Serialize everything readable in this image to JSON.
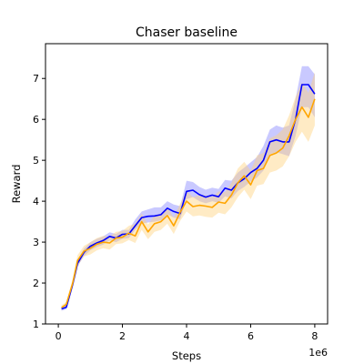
{
  "chart_data": {
    "type": "line",
    "title": "Chaser baseline",
    "xlabel": "Steps",
    "ylabel": "Reward",
    "x_offset_label": "1e6",
    "xlim": [
      -0.4,
      8.4
    ],
    "ylim": [
      1,
      7.85
    ],
    "xticks": [
      0,
      2,
      4,
      6,
      8
    ],
    "yticks": [
      1,
      2,
      3,
      4,
      5,
      6,
      7
    ],
    "grid": false,
    "legend": "none",
    "x": [
      0.1,
      0.25,
      0.45,
      0.6,
      0.8,
      1.0,
      1.2,
      1.4,
      1.6,
      1.8,
      2.0,
      2.2,
      2.4,
      2.6,
      2.8,
      3.0,
      3.2,
      3.4,
      3.6,
      3.8,
      4.0,
      4.2,
      4.4,
      4.6,
      4.8,
      5.0,
      5.2,
      5.4,
      5.6,
      5.8,
      6.0,
      6.2,
      6.4,
      6.6,
      6.8,
      7.0,
      7.2,
      7.4,
      7.6,
      7.8,
      8.0
    ],
    "series": [
      {
        "color": "#0000ff",
        "band_color": "#8888ff",
        "values": [
          1.37,
          1.41,
          1.97,
          2.48,
          2.75,
          2.9,
          2.98,
          3.04,
          3.14,
          3.1,
          3.19,
          3.2,
          3.4,
          3.6,
          3.63,
          3.64,
          3.67,
          3.83,
          3.75,
          3.7,
          4.24,
          4.27,
          4.16,
          4.1,
          4.15,
          4.11,
          4.32,
          4.27,
          4.45,
          4.55,
          4.7,
          4.8,
          5.0,
          5.45,
          5.5,
          5.45,
          5.45,
          6.0,
          6.85,
          6.85,
          6.62
        ],
        "lower": [
          1.32,
          1.36,
          1.9,
          2.4,
          2.66,
          2.8,
          2.88,
          2.94,
          3.04,
          3.0,
          3.08,
          3.1,
          3.3,
          3.45,
          3.48,
          3.5,
          3.53,
          3.68,
          3.6,
          3.56,
          4.05,
          4.1,
          4.0,
          3.95,
          4.0,
          3.96,
          4.12,
          4.07,
          4.25,
          4.35,
          4.48,
          4.58,
          4.75,
          5.15,
          5.2,
          5.15,
          5.1,
          5.6,
          6.3,
          6.3,
          6.05
        ],
        "upper": [
          1.42,
          1.46,
          2.04,
          2.56,
          2.84,
          3.0,
          3.08,
          3.14,
          3.24,
          3.2,
          3.3,
          3.3,
          3.55,
          3.75,
          3.8,
          3.85,
          3.85,
          4.0,
          3.92,
          3.88,
          4.5,
          4.47,
          4.35,
          4.28,
          4.33,
          4.3,
          4.52,
          4.5,
          4.7,
          4.82,
          4.95,
          5.08,
          5.35,
          5.75,
          5.85,
          5.8,
          5.85,
          6.5,
          7.3,
          7.3,
          7.1
        ]
      },
      {
        "color": "#ffa500",
        "band_color": "#ffd27f",
        "values": [
          1.4,
          1.48,
          2.0,
          2.55,
          2.78,
          2.85,
          2.95,
          3.0,
          2.98,
          3.1,
          3.12,
          3.22,
          3.15,
          3.5,
          3.25,
          3.45,
          3.5,
          3.65,
          3.4,
          3.73,
          4.0,
          3.87,
          3.9,
          3.88,
          3.85,
          3.98,
          3.95,
          4.15,
          4.45,
          4.62,
          4.4,
          4.75,
          4.8,
          5.12,
          5.18,
          5.3,
          5.6,
          6.0,
          6.3,
          6.05,
          6.5
        ],
        "lower": [
          1.34,
          1.42,
          1.9,
          2.42,
          2.65,
          2.7,
          2.8,
          2.85,
          2.82,
          2.95,
          2.97,
          3.05,
          2.98,
          3.3,
          3.07,
          3.25,
          3.3,
          3.45,
          3.2,
          3.52,
          3.75,
          3.63,
          3.65,
          3.62,
          3.6,
          3.72,
          3.68,
          3.85,
          4.1,
          4.28,
          4.05,
          4.38,
          4.42,
          4.7,
          4.75,
          4.85,
          5.1,
          5.45,
          5.7,
          5.45,
          5.85
        ],
        "upper": [
          1.46,
          1.54,
          2.1,
          2.68,
          2.91,
          3.0,
          3.1,
          3.15,
          3.14,
          3.25,
          3.27,
          3.4,
          3.45,
          3.7,
          3.43,
          3.65,
          3.7,
          3.85,
          3.6,
          3.94,
          4.25,
          4.1,
          4.15,
          4.14,
          4.1,
          4.24,
          4.22,
          4.45,
          4.8,
          4.96,
          4.75,
          5.12,
          5.18,
          5.54,
          5.61,
          5.75,
          6.1,
          6.55,
          6.9,
          6.65,
          7.15
        ]
      }
    ]
  }
}
